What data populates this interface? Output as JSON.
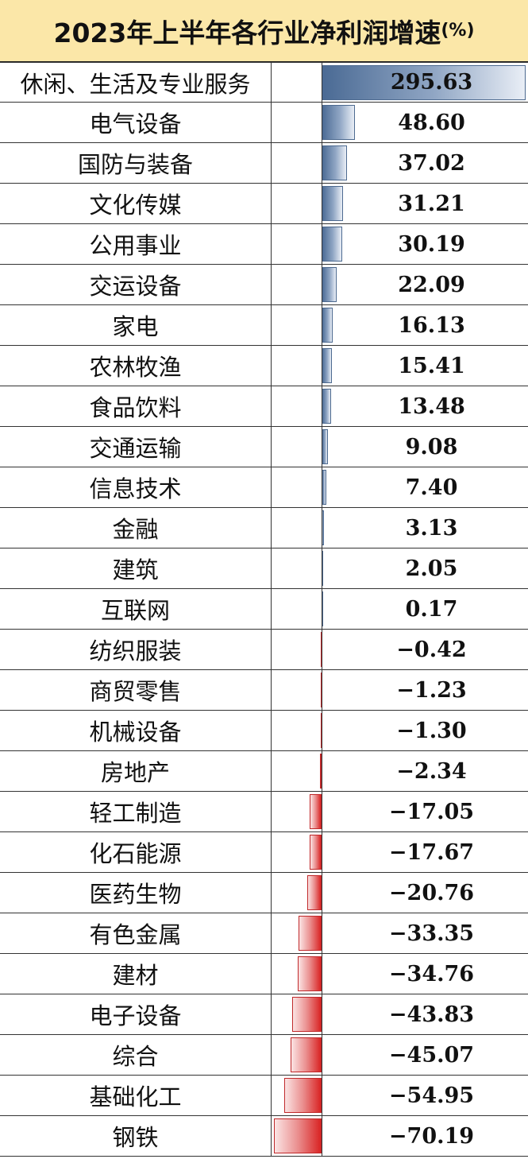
{
  "title": {
    "text": "2023年上半年各行业净利润增速",
    "unit": "(%)"
  },
  "colors": {
    "header_bg": "#fbe7a8",
    "positive_bar": "#4a6a94",
    "negative_bar": "#d92424"
  },
  "chart_data": {
    "type": "bar",
    "orientation": "horizontal",
    "title": "2023年上半年各行业净利润增速(%)",
    "xlabel": "",
    "ylabel": "",
    "grid": false,
    "legend": "none",
    "xlim": [
      -70.19,
      295.63
    ],
    "categories": [
      "休闲、生活及专业服务",
      "电气设备",
      "国防与装备",
      "文化传媒",
      "公用事业",
      "交运设备",
      "家电",
      "农林牧渔",
      "食品饮料",
      "交通运输",
      "信息技术",
      "金融",
      "建筑",
      "互联网",
      "纺织服装",
      "商贸零售",
      "机械设备",
      "房地产",
      "轻工制造",
      "化石能源",
      "医药生物",
      "有色金属",
      "建材",
      "电子设备",
      "综合",
      "基础化工",
      "钢铁"
    ],
    "values": [
      295.63,
      48.6,
      37.02,
      31.21,
      30.19,
      22.09,
      16.13,
      15.41,
      13.48,
      9.08,
      7.4,
      3.13,
      2.05,
      0.17,
      -0.42,
      -1.23,
      -1.3,
      -2.34,
      -17.05,
      -17.67,
      -20.76,
      -33.35,
      -34.76,
      -43.83,
      -45.07,
      -54.95,
      -70.19
    ],
    "labels": [
      "295.63",
      "48.60",
      "37.02",
      "31.21",
      "30.19",
      "22.09",
      "16.13",
      "15.41",
      "13.48",
      "9.08",
      "7.40",
      "3.13",
      "2.05",
      "0.17",
      "−0.42",
      "−1.23",
      "−1.30",
      "−2.34",
      "−17.05",
      "−17.67",
      "−20.76",
      "−33.35",
      "−34.76",
      "−43.83",
      "−45.07",
      "−54.95",
      "−70.19"
    ]
  }
}
